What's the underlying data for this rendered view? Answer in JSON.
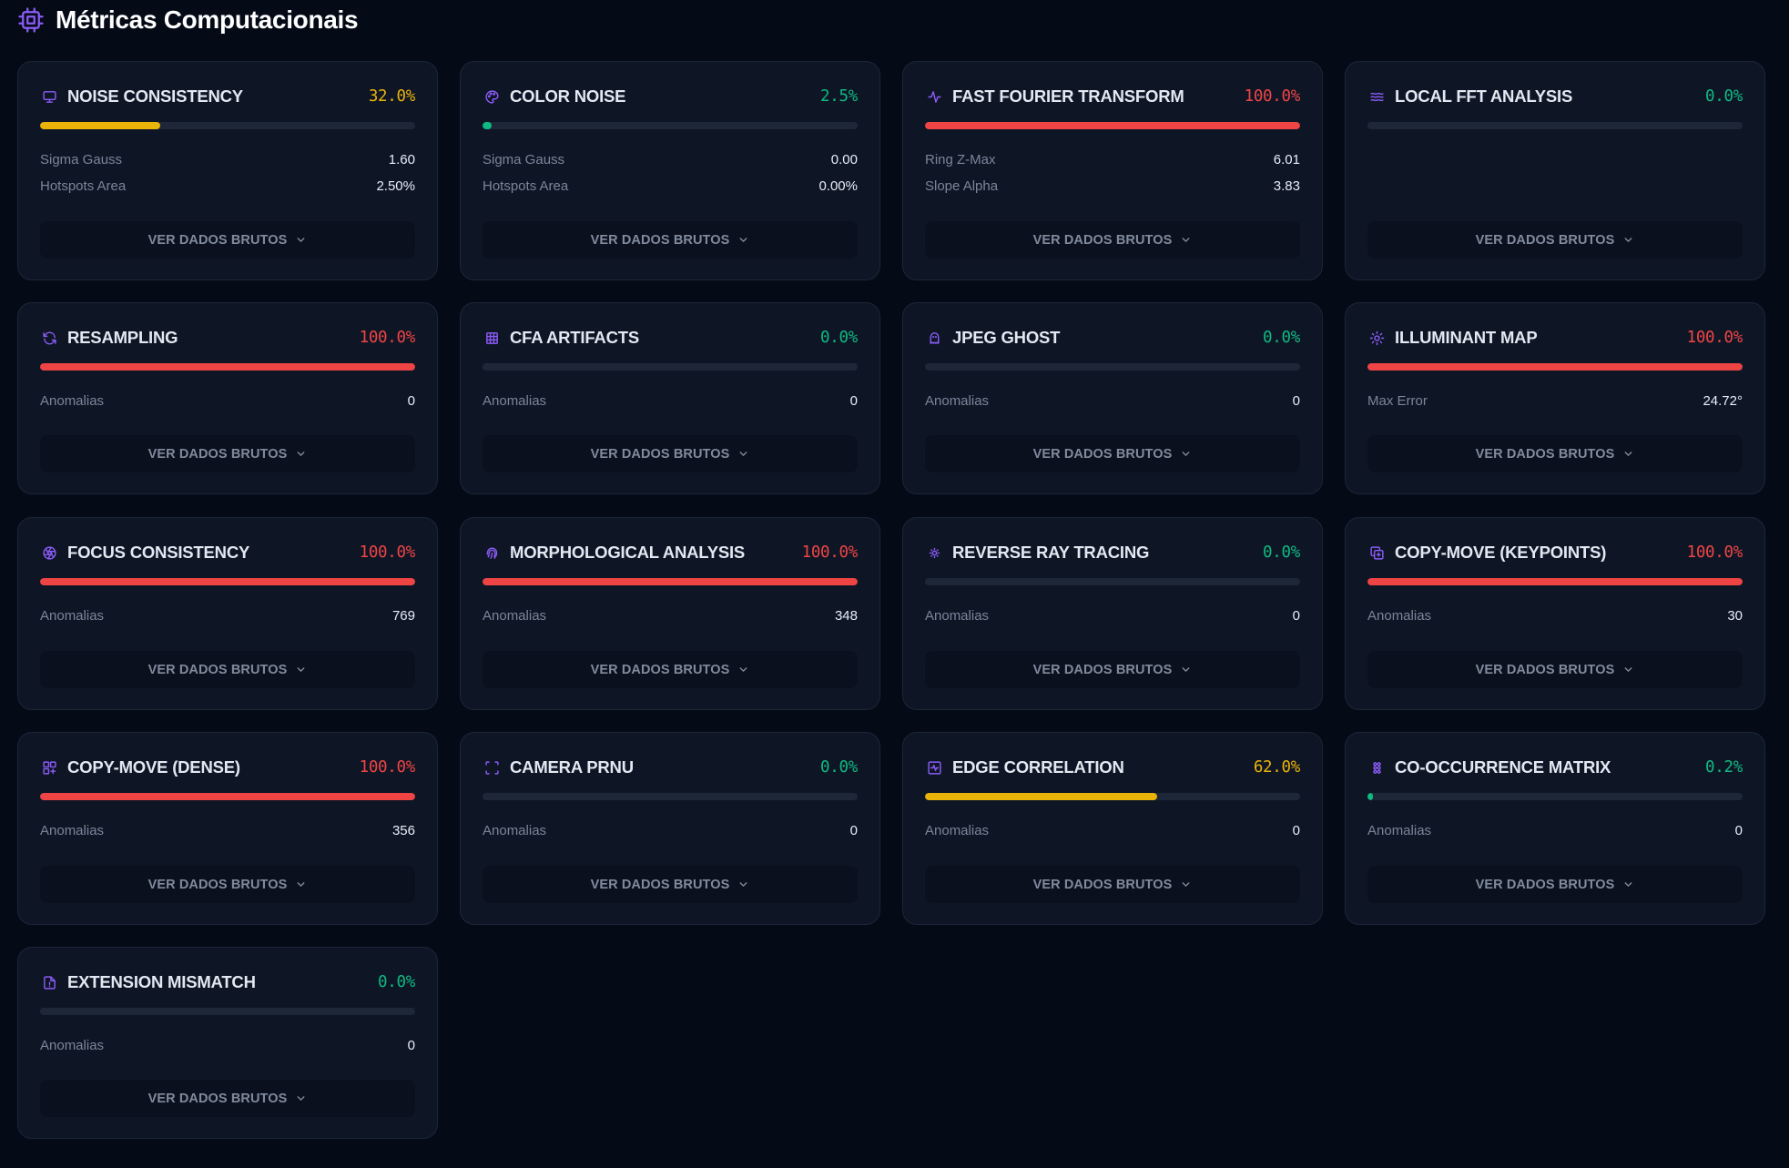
{
  "header": {
    "icon": "cpu-chip-icon",
    "title": "Métricas Computacionais"
  },
  "colors": {
    "accent": "#8b5cf6",
    "danger": "#ef4444",
    "warning": "#eab308",
    "success": "#10b981"
  },
  "raw_button_label": "VER DADOS BRUTOS",
  "cards": [
    {
      "title": "NOISE CONSISTENCY",
      "icon": "monitor-icon",
      "score": "32.0%",
      "status": "warning",
      "progress": 32.0,
      "metrics": [
        {
          "label": "Sigma Gauss",
          "value": "1.60"
        },
        {
          "label": "Hotspots Area",
          "value": "2.50%"
        }
      ]
    },
    {
      "title": "COLOR NOISE",
      "icon": "palette-icon",
      "score": "2.5%",
      "status": "success",
      "progress": 2.5,
      "metrics": [
        {
          "label": "Sigma Gauss",
          "value": "0.00"
        },
        {
          "label": "Hotspots Area",
          "value": "0.00%"
        }
      ]
    },
    {
      "title": "FAST FOURIER TRANSFORM",
      "icon": "activity-icon",
      "score": "100.0%",
      "status": "danger",
      "progress": 100,
      "metrics": [
        {
          "label": "Ring Z-Max",
          "value": "6.01"
        },
        {
          "label": "Slope Alpha",
          "value": "3.83"
        }
      ]
    },
    {
      "title": "LOCAL FFT ANALYSIS",
      "icon": "waves-icon",
      "score": "0.0%",
      "status": "success",
      "progress": 0,
      "metrics": []
    },
    {
      "title": "RESAMPLING",
      "icon": "refresh-icon",
      "score": "100.0%",
      "status": "danger",
      "progress": 100,
      "metrics": [
        {
          "label": "Anomalias",
          "value": "0"
        }
      ]
    },
    {
      "title": "CFA ARTIFACTS",
      "icon": "grid-icon",
      "score": "0.0%",
      "status": "success",
      "progress": 0,
      "metrics": [
        {
          "label": "Anomalias",
          "value": "0"
        }
      ]
    },
    {
      "title": "JPEG GHOST",
      "icon": "ghost-icon",
      "score": "0.0%",
      "status": "success",
      "progress": 0,
      "metrics": [
        {
          "label": "Anomalias",
          "value": "0"
        }
      ]
    },
    {
      "title": "ILLUMINANT MAP",
      "icon": "sun-icon",
      "score": "100.0%",
      "status": "danger",
      "progress": 100,
      "metrics": [
        {
          "label": "Max Error",
          "value": "24.72°"
        }
      ]
    },
    {
      "title": "FOCUS CONSISTENCY",
      "icon": "aperture-icon",
      "score": "100.0%",
      "status": "danger",
      "progress": 100,
      "metrics": [
        {
          "label": "Anomalias",
          "value": "769"
        }
      ]
    },
    {
      "title": "MORPHOLOGICAL ANALYSIS",
      "icon": "fingerprint-icon",
      "score": "100.0%",
      "status": "danger",
      "progress": 100,
      "metrics": [
        {
          "label": "Anomalias",
          "value": "348"
        }
      ]
    },
    {
      "title": "REVERSE RAY TRACING",
      "icon": "sun-small-icon",
      "score": "0.0%",
      "status": "success",
      "progress": 0,
      "metrics": [
        {
          "label": "Anomalias",
          "value": "0"
        }
      ]
    },
    {
      "title": "COPY-MOVE (KEYPOINTS)",
      "icon": "copy-icon",
      "score": "100.0%",
      "status": "danger",
      "progress": 100,
      "metrics": [
        {
          "label": "Anomalias",
          "value": "30"
        }
      ]
    },
    {
      "title": "COPY-MOVE (DENSE)",
      "icon": "layout-plus-icon",
      "score": "100.0%",
      "status": "danger",
      "progress": 100,
      "metrics": [
        {
          "label": "Anomalias",
          "value": "356"
        }
      ]
    },
    {
      "title": "CAMERA PRNU",
      "icon": "scan-icon",
      "score": "0.0%",
      "status": "success",
      "progress": 0,
      "metrics": [
        {
          "label": "Anomalias",
          "value": "0"
        }
      ]
    },
    {
      "title": "EDGE CORRELATION",
      "icon": "square-activity-icon",
      "score": "62.0%",
      "status": "warning",
      "progress": 62.0,
      "metrics": [
        {
          "label": "Anomalias",
          "value": "0"
        }
      ]
    },
    {
      "title": "CO-OCCURRENCE MATRIX",
      "icon": "dots-matrix-icon",
      "score": "0.2%",
      "status": "success",
      "progress": 0.2,
      "metrics": [
        {
          "label": "Anomalias",
          "value": "0"
        }
      ]
    },
    {
      "title": "EXTENSION MISMATCH",
      "icon": "file-alert-icon",
      "score": "0.0%",
      "status": "success",
      "progress": 0,
      "metrics": [
        {
          "label": "Anomalias",
          "value": "0"
        }
      ]
    }
  ]
}
